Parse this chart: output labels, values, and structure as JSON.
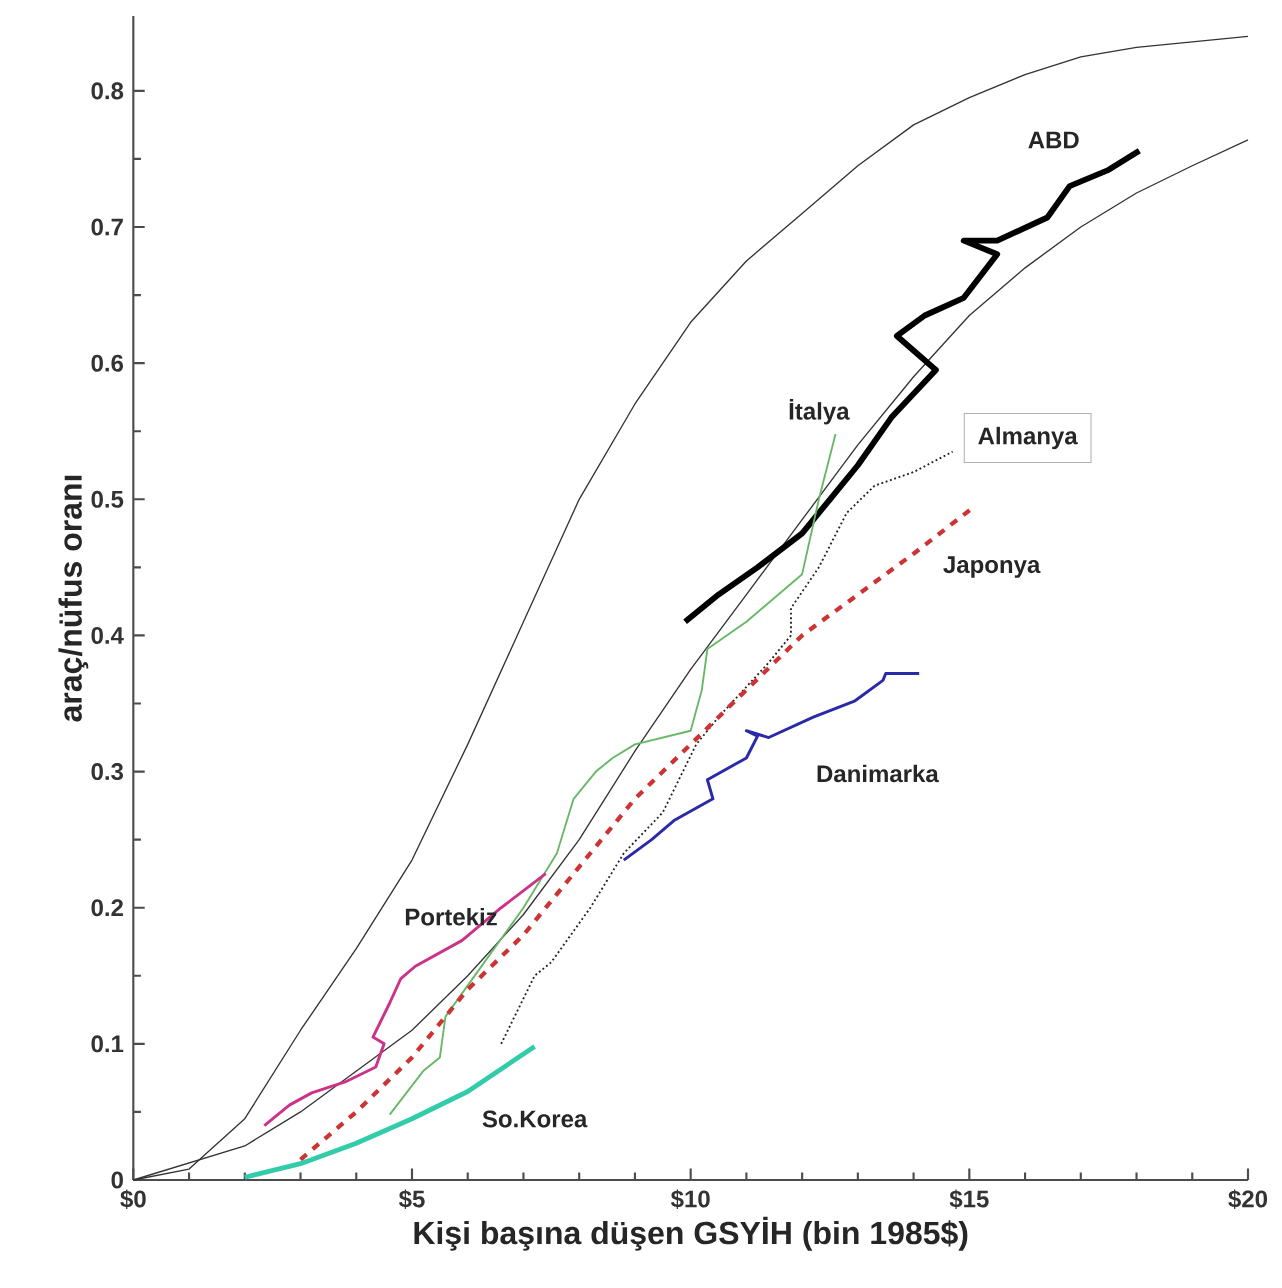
{
  "chart_data": {
    "type": "line",
    "xlabel": "Kişi başına düşen GSYİH (bin 1985$)",
    "ylabel": "araç/nüfus oranı",
    "xlim": [
      0,
      20
    ],
    "ylim": [
      0,
      0.855
    ],
    "xticks": [
      {
        "value": 0,
        "label": "$0"
      },
      {
        "value": 5,
        "label": "$5"
      },
      {
        "value": 10,
        "label": "$10"
      },
      {
        "value": 15,
        "label": "$15"
      },
      {
        "value": 20,
        "label": "$20"
      }
    ],
    "yticks": [
      0,
      0.1,
      0.2,
      0.3,
      0.4,
      0.5,
      0.6,
      0.7,
      0.8
    ],
    "grid": false,
    "legend": false,
    "marker": "none",
    "series": [
      {
        "color": "#333333",
        "line_style": "solid",
        "x": [
          0,
          1,
          2,
          3,
          4,
          5,
          6,
          7,
          8,
          9,
          10,
          11,
          12,
          13,
          14,
          15,
          16,
          17,
          18,
          20
        ],
        "values": [
          0,
          0.008,
          0.045,
          0.11,
          0.17,
          0.235,
          0.32,
          0.41,
          0.5,
          0.57,
          0.63,
          0.675,
          0.71,
          0.745,
          0.775,
          0.795,
          0.812,
          0.825,
          0.832,
          0.84
        ]
      },
      {
        "color": "#333333",
        "line_style": "solid",
        "x": [
          0,
          2,
          3,
          4,
          5,
          6,
          7,
          8,
          9,
          10,
          11,
          12,
          13,
          14,
          15,
          16,
          17,
          18,
          19,
          20
        ],
        "values": [
          0,
          0.025,
          0.05,
          0.08,
          0.11,
          0.15,
          0.195,
          0.25,
          0.315,
          0.375,
          0.43,
          0.485,
          0.54,
          0.59,
          0.635,
          0.67,
          0.7,
          0.725,
          0.745,
          0.764
        ]
      },
      {
        "name": "ABD",
        "color": "#000000",
        "line_style": "solid",
        "x": [
          9.9,
          10.5,
          11.2,
          12.0,
          12.5,
          13.0,
          13.6,
          14.4,
          13.7,
          14.2,
          14.9,
          15.5,
          14.9,
          15.5,
          16.4,
          16.8,
          17.5,
          18.05
        ],
        "values": [
          0.41,
          0.43,
          0.45,
          0.475,
          0.5,
          0.525,
          0.56,
          0.595,
          0.62,
          0.635,
          0.648,
          0.68,
          0.69,
          0.69,
          0.707,
          0.73,
          0.742,
          0.756
        ]
      },
      {
        "name": "İtalya",
        "color": "#66b866",
        "line_style": "solid",
        "x": [
          4.6,
          5.2,
          5.5,
          5.6,
          6.3,
          7.0,
          7.6,
          7.9,
          8.3,
          8.6,
          9.0,
          10.0,
          10.2,
          10.3,
          11.0,
          12.0,
          12.3,
          12.6
        ],
        "values": [
          0.048,
          0.08,
          0.09,
          0.12,
          0.16,
          0.2,
          0.24,
          0.28,
          0.3,
          0.31,
          0.32,
          0.33,
          0.36,
          0.39,
          0.41,
          0.445,
          0.5,
          0.548
        ]
      },
      {
        "name": "Almanya",
        "color": "#222222",
        "line_style": "dotted",
        "x": [
          6.6,
          7.2,
          7.5,
          8.2,
          8.8,
          9.5,
          10.1,
          10.5,
          11.4,
          11.8,
          11.8,
          12.3,
          12.8,
          13.3,
          14.0,
          14.7
        ],
        "values": [
          0.1,
          0.15,
          0.16,
          0.2,
          0.24,
          0.27,
          0.32,
          0.34,
          0.38,
          0.4,
          0.42,
          0.45,
          0.49,
          0.51,
          0.52,
          0.535
        ]
      },
      {
        "name": "Japonya",
        "color": "#cc3333",
        "line_style": "dashed",
        "x": [
          3.0,
          4,
          5,
          6,
          7,
          8,
          9,
          10,
          11,
          12,
          13,
          14,
          15.1
        ],
        "values": [
          0.015,
          0.05,
          0.09,
          0.14,
          0.18,
          0.23,
          0.28,
          0.32,
          0.36,
          0.4,
          0.43,
          0.46,
          0.495
        ]
      },
      {
        "name": "Danimarka",
        "color": "#2a2aa8",
        "line_style": "solid",
        "x": [
          8.8,
          9.3,
          9.7,
          10.4,
          10.3,
          11.0,
          11.2,
          11.0,
          11.4,
          12.2,
          12.95,
          13.45,
          13.5,
          14.1
        ],
        "values": [
          0.235,
          0.25,
          0.264,
          0.28,
          0.294,
          0.31,
          0.326,
          0.33,
          0.325,
          0.34,
          0.352,
          0.367,
          0.372,
          0.372
        ]
      },
      {
        "name": "Portekiz",
        "color": "#cc3388",
        "line_style": "solid",
        "x": [
          2.35,
          2.8,
          3.2,
          3.8,
          4.35,
          4.5,
          4.3,
          4.6,
          4.8,
          5.06,
          5.9,
          6.6,
          7.4
        ],
        "values": [
          0.04,
          0.055,
          0.064,
          0.072,
          0.083,
          0.1,
          0.105,
          0.13,
          0.148,
          0.157,
          0.176,
          0.2,
          0.225
        ]
      },
      {
        "name": "So.Korea",
        "color": "#33ccaa",
        "line_style": "solid",
        "x": [
          2.0,
          3,
          4,
          5,
          6,
          7.2
        ],
        "values": [
          0.002,
          0.012,
          0.027,
          0.045,
          0.065,
          0.098
        ]
      }
    ]
  }
}
